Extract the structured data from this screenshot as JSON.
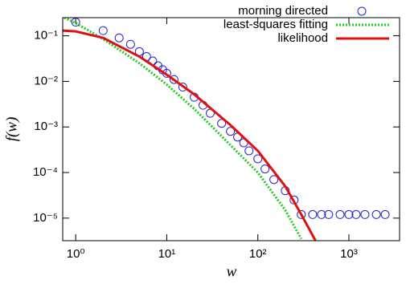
{
  "chart_data": {
    "type": "scatter",
    "xlabel": "w",
    "ylabel": "f(w)",
    "xscale": "log",
    "yscale": "log",
    "xlim": [
      0.72,
      3600
    ],
    "ylim": [
      3.2e-06,
      0.25
    ],
    "xticks": [
      {
        "value": 1,
        "label": "10⁰"
      },
      {
        "value": 10,
        "label": "10¹"
      },
      {
        "value": 100,
        "label": "10²"
      },
      {
        "value": 1000,
        "label": "10³"
      }
    ],
    "yticks": [
      {
        "value": 0.1,
        "label": "10⁻¹"
      },
      {
        "value": 0.01,
        "label": "10⁻²"
      },
      {
        "value": 0.001,
        "label": "10⁻³"
      },
      {
        "value": 0.0001,
        "label": "10⁻⁴"
      },
      {
        "value": 1e-05,
        "label": "10⁻⁵"
      }
    ],
    "legend": "top-right",
    "series": [
      {
        "name": "morning directed",
        "color": "#2323c8",
        "style": "points",
        "x": [
          1,
          2,
          3,
          4,
          5,
          6,
          7,
          8,
          9,
          10,
          12,
          15,
          20,
          25,
          30,
          40,
          50,
          60,
          70,
          80,
          100,
          120,
          150,
          200,
          250,
          300,
          400,
          500,
          600,
          800,
          1000,
          1200,
          1500,
          2000,
          2500
        ],
        "values": [
          0.2,
          0.13,
          0.09,
          0.065,
          0.045,
          0.035,
          0.028,
          0.022,
          0.018,
          0.015,
          0.011,
          0.0075,
          0.0045,
          0.003,
          0.002,
          0.0012,
          0.0008,
          0.0006,
          0.00045,
          0.0003,
          0.0002,
          0.00012,
          7e-05,
          4e-05,
          2.5e-05,
          1.2e-05,
          1.2e-05,
          1.2e-05,
          1.2e-05,
          1.2e-05,
          1.2e-05,
          1.2e-05,
          1.2e-05,
          1.2e-05,
          1.2e-05
        ]
      },
      {
        "name": "least-squares fitting",
        "color": "#22cc22",
        "style": "dotted",
        "x": [
          0.75,
          1,
          2,
          5,
          10,
          20,
          50,
          100,
          200,
          300
        ],
        "values": [
          0.25,
          0.19,
          0.085,
          0.025,
          0.0085,
          0.0025,
          0.0004,
          0.0001,
          1.5e-05,
          3.5e-06
        ]
      },
      {
        "name": "likelihood",
        "color": "#e01010",
        "style": "line",
        "x": [
          0.72,
          1,
          2,
          5,
          10,
          20,
          50,
          100,
          200,
          300,
          430
        ],
        "values": [
          0.13,
          0.125,
          0.09,
          0.035,
          0.014,
          0.0052,
          0.0011,
          0.0003,
          5e-05,
          1.2e-05,
          3.2e-06
        ]
      }
    ]
  }
}
